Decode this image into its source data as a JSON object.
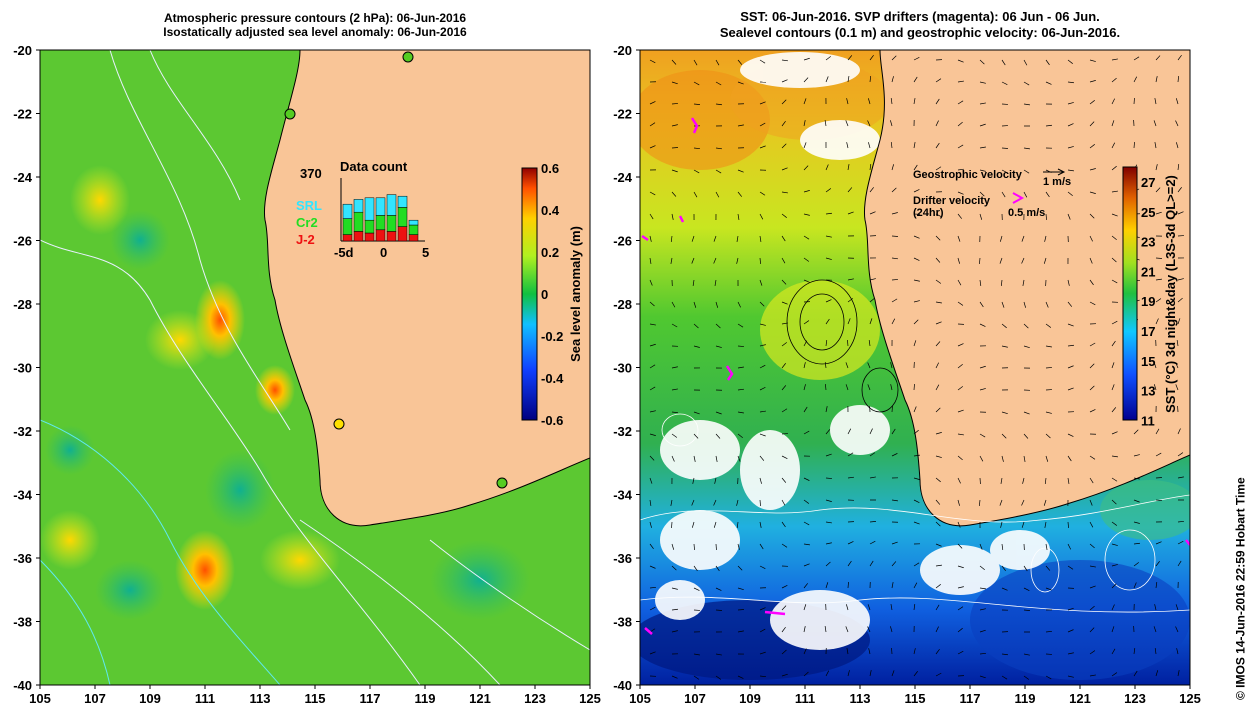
{
  "left_panel": {
    "title_line1": "Atmospheric pressure contours (2 hPa): 06-Jun-2016",
    "title_line2": "Isostatically adjusted sea level anomaly: 06-Jun-2016",
    "colorbar_label": "Sea level anomaly (m)",
    "colorbar_ticks": [
      "0.6",
      "0.4",
      "0.2",
      "0",
      "-0.2",
      "-0.4",
      "-0.6"
    ],
    "inset": {
      "title": "Data count",
      "max_label": "370",
      "legend": [
        "SRL",
        "Cr2",
        "J-2"
      ],
      "legend_colors": [
        "#33e5ff",
        "#22dd22",
        "#ee1111"
      ],
      "x_ticks": [
        "-5d",
        "0",
        "5"
      ]
    }
  },
  "right_panel": {
    "title_line1": "SST: 06-Jun-2016. SVP drifters (magenta): 06 Jun - 06 Jun.",
    "title_line2": "Sealevel contours (0.1 m) and geostrophic velocity: 06-Jun-2016.",
    "geo_label": "Geostrophic velocity",
    "geo_scale": "1 m/s",
    "drifter_label_1": "Drifter velocity",
    "drifter_label_2": "(24hr)",
    "drifter_scale": "0.5 m/s",
    "colorbar_label": "SST (°C) 3d night&day (L3S-3d QL>=2)",
    "colorbar_ticks": [
      "27",
      "25",
      "23",
      "21",
      "19",
      "17",
      "15",
      "13",
      "11"
    ]
  },
  "axes": {
    "y_ticks": [
      "-20",
      "-22",
      "-24",
      "-26",
      "-28",
      "-30",
      "-32",
      "-34",
      "-36",
      "-38",
      "-40"
    ],
    "x_ticks": [
      "105",
      "107",
      "109",
      "111",
      "113",
      "115",
      "117",
      "119",
      "121",
      "123",
      "125"
    ]
  },
  "credit": "© IMOS 14-Jun-2016 22:59 Hobart Time",
  "colors": {
    "land": "#f9c597",
    "sla_green": "#55cc22",
    "sst_ocean": "#33b84a",
    "drifter": "#ff00ff"
  }
}
